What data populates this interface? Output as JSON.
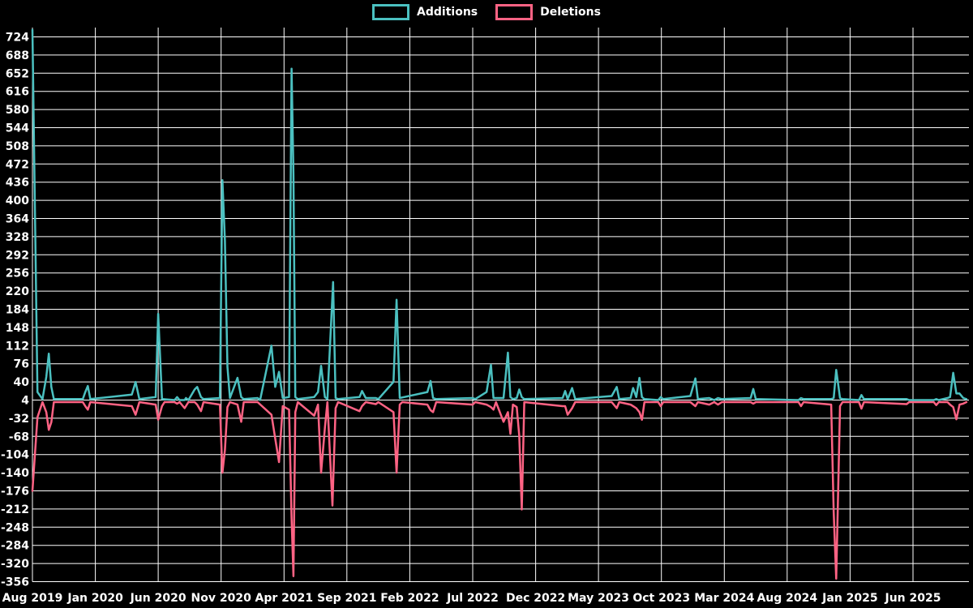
{
  "legend": {
    "items": [
      {
        "label": "Additions",
        "color": "#4bc0c0"
      },
      {
        "label": "Deletions",
        "color": "#ff6384"
      }
    ]
  },
  "chart_data": {
    "type": "line",
    "title": "",
    "legend_position": "top",
    "grid": true,
    "background": "#000000",
    "grid_color": "#ffffff",
    "text_color": "#ffffff",
    "x_unit": "months since Aug 2019",
    "x_axis": {
      "tick_labels": [
        "Aug 2019",
        "Jan 2020",
        "Jun 2020",
        "Nov 2020",
        "Apr 2021",
        "Sep 2021",
        "Feb 2022",
        "Jul 2022",
        "Dec 2022",
        "May 2023",
        "Oct 2023",
        "Mar 2024",
        "Aug 2024",
        "Jan 2025",
        "Jun 2025"
      ],
      "months_between_ticks": 5
    },
    "y_axis": {
      "min": -356,
      "max": 724,
      "step": 36,
      "tick_labels": [
        724,
        688,
        652,
        616,
        580,
        544,
        508,
        472,
        436,
        400,
        364,
        328,
        292,
        256,
        220,
        184,
        148,
        112,
        76,
        40,
        4,
        -32,
        -68,
        -104,
        -140,
        -176,
        -212,
        -248,
        -284,
        -320,
        -356
      ]
    },
    "series": [
      {
        "name": "Additions",
        "color": "#4bc0c0",
        "points": [
          [
            0,
            738
          ],
          [
            0.4,
            20
          ],
          [
            0.8,
            6
          ],
          [
            1.1,
            50
          ],
          [
            1.3,
            96
          ],
          [
            1.5,
            30
          ],
          [
            1.7,
            6
          ],
          [
            4.0,
            6
          ],
          [
            4.2,
            20
          ],
          [
            4.4,
            32
          ],
          [
            4.6,
            6
          ],
          [
            7.9,
            15
          ],
          [
            8.2,
            40
          ],
          [
            8.5,
            6
          ],
          [
            9.8,
            10
          ],
          [
            10.0,
            175
          ],
          [
            10.3,
            6
          ],
          [
            11.3,
            4
          ],
          [
            11.5,
            10
          ],
          [
            11.7,
            4
          ],
          [
            12.1,
            4
          ],
          [
            12.2,
            8
          ],
          [
            12.4,
            4
          ],
          [
            12.9,
            25
          ],
          [
            13.1,
            30
          ],
          [
            13.4,
            10
          ],
          [
            13.6,
            6
          ],
          [
            14.9,
            8
          ],
          [
            15.1,
            440
          ],
          [
            15.3,
            320
          ],
          [
            15.5,
            70
          ],
          [
            15.7,
            8
          ],
          [
            16.3,
            48
          ],
          [
            16.6,
            10
          ],
          [
            16.8,
            6
          ],
          [
            17.9,
            8
          ],
          [
            18.1,
            4
          ],
          [
            19.0,
            112
          ],
          [
            19.3,
            30
          ],
          [
            19.6,
            60
          ],
          [
            19.9,
            8
          ],
          [
            20.4,
            10
          ],
          [
            20.6,
            661
          ],
          [
            20.75,
            452
          ],
          [
            20.9,
            10
          ],
          [
            21.1,
            6
          ],
          [
            22.4,
            10
          ],
          [
            22.7,
            20
          ],
          [
            22.95,
            72
          ],
          [
            23.25,
            10
          ],
          [
            23.45,
            6
          ],
          [
            23.9,
            238
          ],
          [
            24.1,
            8
          ],
          [
            24.3,
            6
          ],
          [
            26.0,
            10
          ],
          [
            26.2,
            22
          ],
          [
            26.5,
            8
          ],
          [
            27.3,
            8
          ],
          [
            27.5,
            6
          ],
          [
            28.7,
            40
          ],
          [
            28.95,
            203
          ],
          [
            29.2,
            8
          ],
          [
            31.4,
            20
          ],
          [
            31.65,
            42
          ],
          [
            31.85,
            8
          ],
          [
            32.1,
            6
          ],
          [
            35.0,
            8
          ],
          [
            35.2,
            6
          ],
          [
            36.1,
            20
          ],
          [
            36.45,
            74
          ],
          [
            36.65,
            8
          ],
          [
            37.45,
            8
          ],
          [
            37.8,
            98
          ],
          [
            38.0,
            10
          ],
          [
            38.2,
            6
          ],
          [
            38.5,
            8
          ],
          [
            38.7,
            25
          ],
          [
            38.9,
            10
          ],
          [
            39.1,
            6
          ],
          [
            42.15,
            8
          ],
          [
            42.35,
            22
          ],
          [
            42.55,
            6
          ],
          [
            42.9,
            28
          ],
          [
            43.15,
            6
          ],
          [
            46.05,
            12
          ],
          [
            46.45,
            30
          ],
          [
            46.65,
            6
          ],
          [
            47.55,
            8
          ],
          [
            47.75,
            28
          ],
          [
            48.0,
            10
          ],
          [
            48.25,
            48
          ],
          [
            48.45,
            10
          ],
          [
            48.65,
            6
          ],
          [
            49.75,
            4
          ],
          [
            49.95,
            10
          ],
          [
            50.15,
            6
          ],
          [
            52.3,
            12
          ],
          [
            52.7,
            47
          ],
          [
            52.9,
            6
          ],
          [
            53.8,
            8
          ],
          [
            54.2,
            4
          ],
          [
            54.5,
            8
          ],
          [
            54.8,
            6
          ],
          [
            57.1,
            8
          ],
          [
            57.3,
            26
          ],
          [
            57.5,
            6
          ],
          [
            60.9,
            4
          ],
          [
            61.1,
            8
          ],
          [
            61.3,
            6
          ],
          [
            63.5,
            6
          ],
          [
            63.7,
            8
          ],
          [
            63.9,
            64
          ],
          [
            64.2,
            8
          ],
          [
            64.4,
            6
          ],
          [
            65.7,
            4
          ],
          [
            65.9,
            14
          ],
          [
            66.1,
            6
          ],
          [
            69.5,
            6
          ],
          [
            69.7,
            4
          ],
          [
            71.65,
            4
          ],
          [
            71.85,
            6
          ],
          [
            72.05,
            4
          ],
          [
            72.75,
            8
          ],
          [
            72.95,
            10
          ],
          [
            73.2,
            58
          ],
          [
            73.45,
            17
          ],
          [
            73.7,
            17
          ],
          [
            74.0,
            8
          ],
          [
            74.25,
            6
          ]
        ]
      },
      {
        "name": "Deletions",
        "color": "#ff6384",
        "points": [
          [
            0,
            -176
          ],
          [
            0.4,
            -30
          ],
          [
            0.8,
            0
          ],
          [
            1.1,
            -20
          ],
          [
            1.3,
            -55
          ],
          [
            1.5,
            -40
          ],
          [
            1.7,
            0
          ],
          [
            4.0,
            0
          ],
          [
            4.2,
            -8
          ],
          [
            4.4,
            -15
          ],
          [
            4.6,
            0
          ],
          [
            7.9,
            -8
          ],
          [
            8.2,
            -25
          ],
          [
            8.5,
            0
          ],
          [
            9.8,
            -5
          ],
          [
            10.0,
            -35
          ],
          [
            10.3,
            -8
          ],
          [
            10.5,
            0
          ],
          [
            11.3,
            0
          ],
          [
            11.5,
            -3
          ],
          [
            11.7,
            0
          ],
          [
            12.1,
            -12
          ],
          [
            12.4,
            0
          ],
          [
            12.9,
            0
          ],
          [
            13.1,
            -5
          ],
          [
            13.4,
            -18
          ],
          [
            13.6,
            0
          ],
          [
            14.9,
            -5
          ],
          [
            15.1,
            -140
          ],
          [
            15.3,
            -95
          ],
          [
            15.5,
            -10
          ],
          [
            15.7,
            0
          ],
          [
            16.3,
            -5
          ],
          [
            16.6,
            -39
          ],
          [
            16.8,
            0
          ],
          [
            17.9,
            0
          ],
          [
            19.0,
            -25
          ],
          [
            19.3,
            -72
          ],
          [
            19.6,
            -119
          ],
          [
            19.9,
            -8
          ],
          [
            20.4,
            -15
          ],
          [
            20.6,
            -230
          ],
          [
            20.75,
            -345
          ],
          [
            20.9,
            -20
          ],
          [
            21.1,
            0
          ],
          [
            22.4,
            -27
          ],
          [
            22.7,
            -5
          ],
          [
            22.95,
            -140
          ],
          [
            23.25,
            -51
          ],
          [
            23.45,
            0
          ],
          [
            23.85,
            -205
          ],
          [
            24.1,
            -12
          ],
          [
            24.3,
            0
          ],
          [
            26.0,
            -18
          ],
          [
            26.2,
            -8
          ],
          [
            26.5,
            0
          ],
          [
            27.3,
            -4
          ],
          [
            27.5,
            0
          ],
          [
            28.7,
            -20
          ],
          [
            28.95,
            -140
          ],
          [
            29.2,
            -5
          ],
          [
            29.4,
            0
          ],
          [
            31.4,
            -5
          ],
          [
            31.65,
            -16
          ],
          [
            31.85,
            -20
          ],
          [
            32.1,
            0
          ],
          [
            35.0,
            -5
          ],
          [
            35.2,
            0
          ],
          [
            36.1,
            -5
          ],
          [
            36.45,
            -10
          ],
          [
            36.65,
            -15
          ],
          [
            36.85,
            0
          ],
          [
            37.45,
            -39
          ],
          [
            37.8,
            -20
          ],
          [
            38.0,
            -63
          ],
          [
            38.2,
            -5
          ],
          [
            38.5,
            -10
          ],
          [
            38.7,
            -67
          ],
          [
            38.9,
            -213
          ],
          [
            39.1,
            0
          ],
          [
            42.15,
            -8
          ],
          [
            42.35,
            -8
          ],
          [
            42.55,
            -25
          ],
          [
            42.9,
            -12
          ],
          [
            43.15,
            0
          ],
          [
            46.05,
            0
          ],
          [
            46.45,
            -12
          ],
          [
            46.65,
            0
          ],
          [
            47.55,
            -5
          ],
          [
            47.75,
            -8
          ],
          [
            48.0,
            -12
          ],
          [
            48.25,
            -20
          ],
          [
            48.45,
            -35
          ],
          [
            48.65,
            0
          ],
          [
            49.75,
            0
          ],
          [
            49.95,
            -8
          ],
          [
            50.15,
            0
          ],
          [
            52.3,
            0
          ],
          [
            52.7,
            -8
          ],
          [
            52.9,
            0
          ],
          [
            53.8,
            -5
          ],
          [
            54.2,
            0
          ],
          [
            54.5,
            -5
          ],
          [
            54.8,
            0
          ],
          [
            57.1,
            0
          ],
          [
            57.3,
            -3
          ],
          [
            57.5,
            0
          ],
          [
            60.9,
            0
          ],
          [
            61.1,
            -8
          ],
          [
            61.3,
            0
          ],
          [
            63.5,
            -5
          ],
          [
            63.7,
            -218
          ],
          [
            63.9,
            -350
          ],
          [
            64.2,
            -8
          ],
          [
            64.4,
            0
          ],
          [
            65.7,
            0
          ],
          [
            65.9,
            -13
          ],
          [
            66.1,
            0
          ],
          [
            69.5,
            -4
          ],
          [
            69.7,
            0
          ],
          [
            71.65,
            0
          ],
          [
            71.85,
            -6
          ],
          [
            72.05,
            0
          ],
          [
            72.75,
            0
          ],
          [
            72.95,
            -5
          ],
          [
            73.2,
            -10
          ],
          [
            73.45,
            -34
          ],
          [
            73.7,
            -5
          ],
          [
            74.0,
            -3
          ],
          [
            74.25,
            0
          ]
        ]
      }
    ]
  }
}
